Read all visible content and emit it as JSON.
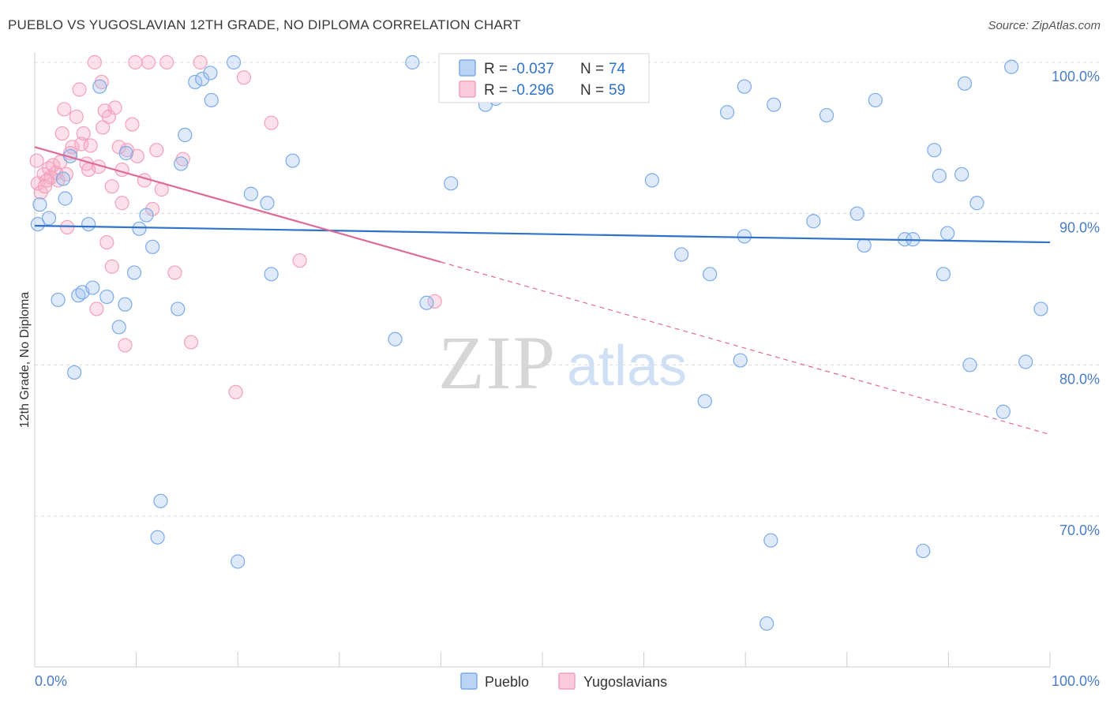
{
  "title": "PUEBLO VS YUGOSLAVIAN 12TH GRADE, NO DIPLOMA CORRELATION CHART",
  "source": "Source: ZipAtlas.com",
  "watermark": {
    "zip": "ZIP",
    "atlas": "atlas"
  },
  "chart_data": {
    "type": "scatter",
    "ylabel": "12th Grade, No Diploma",
    "xlim": [
      0,
      100
    ],
    "ylim": [
      60,
      101
    ],
    "y_ticks": [
      {
        "value": 100,
        "label": "100.0%"
      },
      {
        "value": 90,
        "label": "90.0%"
      },
      {
        "value": 80,
        "label": "80.0%"
      },
      {
        "value": 70,
        "label": "70.0%"
      }
    ],
    "x_tick_labels": {
      "left": "0.0%",
      "right": "100.0%"
    },
    "grid": true,
    "legend_placement": "top-center",
    "stats": [
      {
        "r_label": "R =",
        "r_value": "-0.037",
        "n_label": "N =",
        "n_value": "74"
      },
      {
        "r_label": "R =",
        "r_value": "-0.296",
        "n_label": "N =",
        "n_value": "59"
      }
    ],
    "series": [
      {
        "name": "Pueblo",
        "color": "#7aaae8",
        "line_color": "#2f72cc",
        "trend": {
          "x0": 0,
          "y0": 89.2,
          "x1": 100,
          "y1": 88.1,
          "solid_until": 100
        },
        "points": [
          [
            0.3,
            89.3
          ],
          [
            0.5,
            90.6
          ],
          [
            1.4,
            89.7
          ],
          [
            2.3,
            84.3
          ],
          [
            2.8,
            92.3
          ],
          [
            3.0,
            91.0
          ],
          [
            3.5,
            93.8
          ],
          [
            3.9,
            79.5
          ],
          [
            4.3,
            84.6
          ],
          [
            4.7,
            84.8
          ],
          [
            5.3,
            89.3
          ],
          [
            5.7,
            85.1
          ],
          [
            6.4,
            98.4
          ],
          [
            7.1,
            84.5
          ],
          [
            8.3,
            82.5
          ],
          [
            8.9,
            84.0
          ],
          [
            9.0,
            94.0
          ],
          [
            9.8,
            86.1
          ],
          [
            10.3,
            89.0
          ],
          [
            11.0,
            89.9
          ],
          [
            11.6,
            87.8
          ],
          [
            12.1,
            68.6
          ],
          [
            12.4,
            71.0
          ],
          [
            14.1,
            83.7
          ],
          [
            14.4,
            93.3
          ],
          [
            14.8,
            95.2
          ],
          [
            15.8,
            98.7
          ],
          [
            16.5,
            98.9
          ],
          [
            17.3,
            99.3
          ],
          [
            17.4,
            97.5
          ],
          [
            19.6,
            100.0
          ],
          [
            20.0,
            67.0
          ],
          [
            21.3,
            91.3
          ],
          [
            22.9,
            90.7
          ],
          [
            23.3,
            86.0
          ],
          [
            25.4,
            93.5
          ],
          [
            35.5,
            81.7
          ],
          [
            37.2,
            100.0
          ],
          [
            38.6,
            84.1
          ],
          [
            41.0,
            92.0
          ],
          [
            45.4,
            97.6
          ],
          [
            47.2,
            100.0
          ],
          [
            60.8,
            92.2
          ],
          [
            63.7,
            87.3
          ],
          [
            66.0,
            77.6
          ],
          [
            66.5,
            86.0
          ],
          [
            68.2,
            96.7
          ],
          [
            69.5,
            80.3
          ],
          [
            69.9,
            88.5
          ],
          [
            69.9,
            98.4
          ],
          [
            72.5,
            68.4
          ],
          [
            72.1,
            62.9
          ],
          [
            72.8,
            97.2
          ],
          [
            76.7,
            89.5
          ],
          [
            78.0,
            96.5
          ],
          [
            81.0,
            90.0
          ],
          [
            81.7,
            87.9
          ],
          [
            82.8,
            97.5
          ],
          [
            85.7,
            88.3
          ],
          [
            86.5,
            88.3
          ],
          [
            87.5,
            67.7
          ],
          [
            88.6,
            94.2
          ],
          [
            89.1,
            92.5
          ],
          [
            89.5,
            86.0
          ],
          [
            89.9,
            88.7
          ],
          [
            91.3,
            92.6
          ],
          [
            91.6,
            98.6
          ],
          [
            92.1,
            80.0
          ],
          [
            92.8,
            90.7
          ],
          [
            95.4,
            76.9
          ],
          [
            96.2,
            99.7
          ],
          [
            97.6,
            80.2
          ],
          [
            99.1,
            83.7
          ],
          [
            44.4,
            97.2
          ]
        ]
      },
      {
        "name": "Yugoslavians",
        "color": "#f2a0bb",
        "line_color": "#e06a95",
        "trend": {
          "x0": 0,
          "y0": 94.4,
          "x1": 100,
          "y1": 75.4,
          "solid_until": 40
        },
        "points": [
          [
            0.2,
            93.5
          ],
          [
            0.3,
            92.0
          ],
          [
            0.6,
            91.4
          ],
          [
            0.9,
            92.6
          ],
          [
            1.0,
            91.8
          ],
          [
            1.4,
            93.0
          ],
          [
            1.6,
            92.4
          ],
          [
            1.8,
            93.2
          ],
          [
            2.1,
            92.7
          ],
          [
            2.3,
            92.2
          ],
          [
            2.5,
            93.4
          ],
          [
            2.7,
            95.3
          ],
          [
            2.9,
            96.9
          ],
          [
            3.1,
            92.6
          ],
          [
            3.2,
            89.1
          ],
          [
            3.5,
            94.0
          ],
          [
            3.7,
            94.4
          ],
          [
            4.1,
            96.4
          ],
          [
            4.4,
            98.2
          ],
          [
            4.6,
            94.6
          ],
          [
            4.8,
            95.3
          ],
          [
            5.1,
            93.3
          ],
          [
            5.3,
            92.9
          ],
          [
            5.5,
            94.5
          ],
          [
            5.9,
            100.0
          ],
          [
            6.1,
            83.7
          ],
          [
            6.3,
            93.1
          ],
          [
            6.6,
            98.7
          ],
          [
            6.7,
            95.7
          ],
          [
            6.9,
            96.8
          ],
          [
            7.1,
            88.1
          ],
          [
            7.3,
            96.4
          ],
          [
            7.6,
            91.8
          ],
          [
            7.9,
            97.0
          ],
          [
            8.3,
            94.4
          ],
          [
            8.6,
            92.9
          ],
          [
            8.9,
            81.3
          ],
          [
            9.1,
            94.2
          ],
          [
            9.6,
            95.9
          ],
          [
            9.9,
            100.0
          ],
          [
            10.1,
            93.8
          ],
          [
            10.8,
            92.2
          ],
          [
            11.2,
            100.0
          ],
          [
            11.6,
            90.3
          ],
          [
            12.0,
            94.2
          ],
          [
            12.5,
            91.6
          ],
          [
            13.0,
            100.0
          ],
          [
            13.8,
            86.1
          ],
          [
            14.6,
            93.6
          ],
          [
            15.4,
            81.5
          ],
          [
            16.3,
            100.0
          ],
          [
            19.8,
            78.2
          ],
          [
            20.6,
            99.0
          ],
          [
            23.3,
            96.0
          ],
          [
            26.1,
            86.9
          ],
          [
            39.4,
            84.2
          ],
          [
            7.6,
            86.5
          ],
          [
            8.6,
            90.7
          ],
          [
            1.2,
            92.2
          ]
        ]
      }
    ]
  }
}
